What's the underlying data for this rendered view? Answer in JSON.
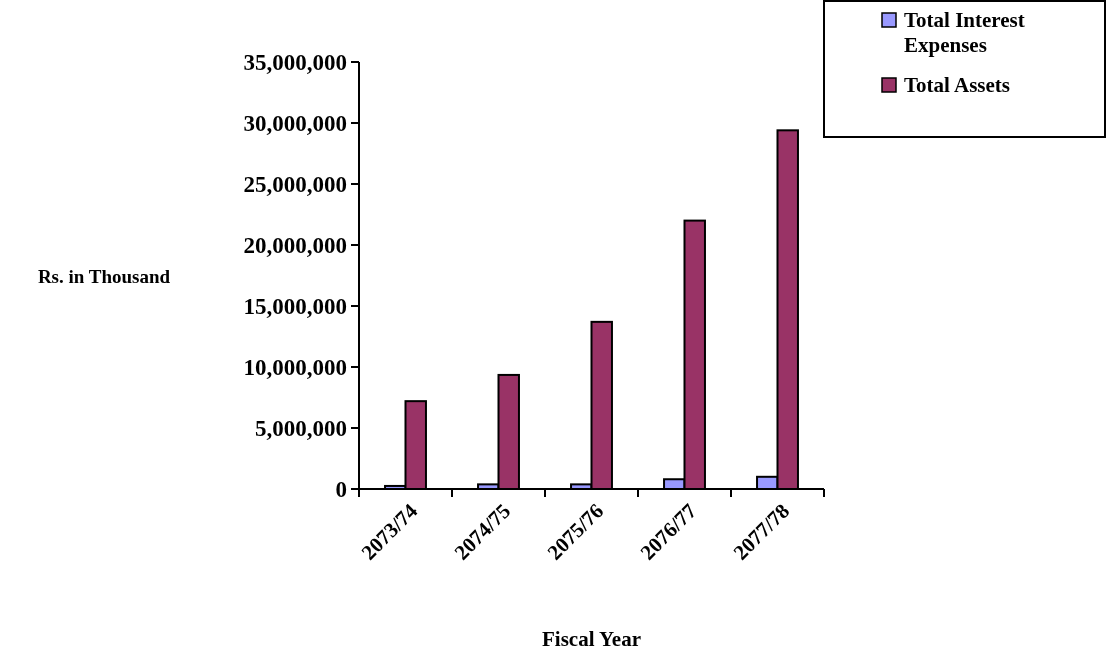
{
  "chart_data": {
    "type": "bar",
    "xlabel": "Fiscal Year",
    "ylabel": "Rs. in Thousand",
    "categories": [
      "2073/74",
      "2074/75",
      "2075/76",
      "2076/77",
      "2077/78"
    ],
    "series": [
      {
        "name": "Total Interest Expenses",
        "color": "#9999ff",
        "values": [
          250000,
          380000,
          380000,
          800000,
          1000000
        ]
      },
      {
        "name": "Total Assets",
        "color": "#993366",
        "values": [
          7200000,
          9350000,
          13700000,
          22000000,
          29400000
        ]
      }
    ],
    "ylim": [
      0,
      35000000
    ],
    "yticks": [
      {
        "value": 0,
        "label": "0"
      },
      {
        "value": 5000000,
        "label": "5,000,000"
      },
      {
        "value": 10000000,
        "label": "10,000,000"
      },
      {
        "value": 15000000,
        "label": "15,000,000"
      },
      {
        "value": 20000000,
        "label": "20,000,000"
      },
      {
        "value": 25000000,
        "label": "25,000,000"
      },
      {
        "value": 30000000,
        "label": "30,000,000"
      },
      {
        "value": 35000000,
        "label": "35,000,000"
      }
    ],
    "grid": false,
    "legend": "top right"
  }
}
